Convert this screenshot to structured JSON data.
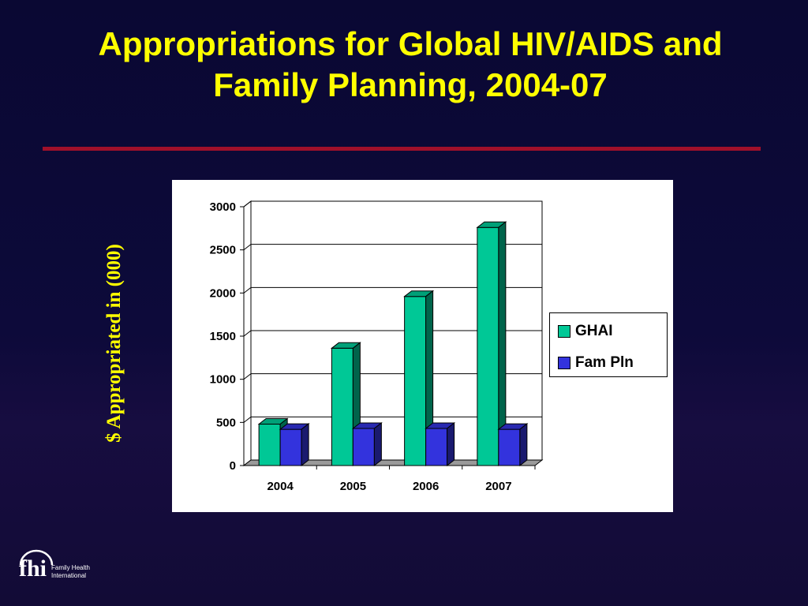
{
  "slide": {
    "title_line1": "Appropriations for Global HIV/AIDS and",
    "title_line2": "Family Planning, 2004-07",
    "side_label": "$ Appropriated in (000)"
  },
  "logo": {
    "mark": "fhi",
    "name_line1": "Family Health",
    "name_line2": "International"
  },
  "colors": {
    "title": "#ffff00",
    "divider": "#a0102a",
    "ghai": "#00c896",
    "fam_pln": "#3333dd"
  },
  "chart_data": {
    "type": "bar",
    "style": "3d-clustered",
    "categories": [
      "2004",
      "2005",
      "2006",
      "2007"
    ],
    "series": [
      {
        "name": "GHAI",
        "values": [
          480,
          1360,
          1960,
          2760
        ]
      },
      {
        "name": "Fam Pln",
        "values": [
          420,
          430,
          430,
          420
        ]
      }
    ],
    "title": "",
    "xlabel": "",
    "ylabel": "$ Appropriated in (000)",
    "ylim": [
      0,
      3000
    ],
    "yticks": [
      "0",
      "500",
      "1000",
      "1500",
      "2000",
      "2500",
      "3000"
    ],
    "grid": true,
    "legend_position": "right"
  }
}
